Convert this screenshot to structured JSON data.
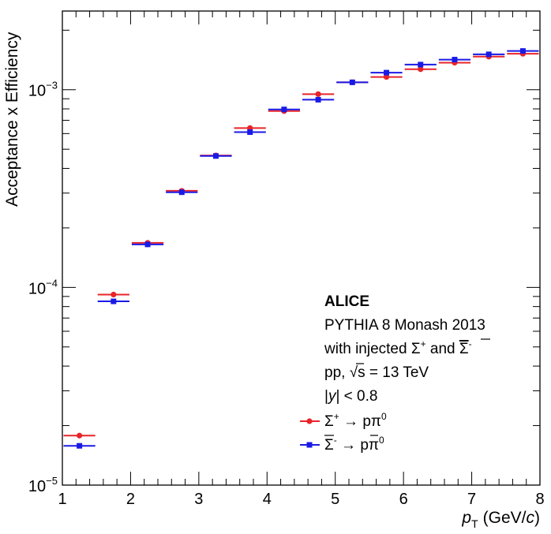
{
  "chart_data": {
    "type": "scatter",
    "ylabel": "Acceptance x Efficiency",
    "xlabel_main": "p",
    "xlabel_sub": "T",
    "xlabel_unit_open": "(GeV/",
    "xlabel_unit_c": "c",
    "xlabel_unit_close": ")",
    "x_range": [
      1,
      8
    ],
    "y_range": [
      1e-05,
      0.0025
    ],
    "y_scale": "log",
    "x_ticks": [
      1,
      2,
      3,
      4,
      5,
      6,
      7,
      8
    ],
    "x_tick_labels": [
      "1",
      "2",
      "3",
      "4",
      "5",
      "6",
      "7",
      "8"
    ],
    "y_tick_labels": [
      {
        "value": 0.001,
        "base": "10",
        "exp": "−3"
      },
      {
        "value": 0.0001,
        "base": "10",
        "exp": "−4"
      },
      {
        "value": 1e-05,
        "base": "10",
        "exp": "−5"
      }
    ],
    "bins": [
      [
        1,
        1.5
      ],
      [
        1.5,
        2
      ],
      [
        2,
        2.5
      ],
      [
        2.5,
        3
      ],
      [
        3,
        3.5
      ],
      [
        3.5,
        4
      ],
      [
        4,
        4.5
      ],
      [
        4.5,
        5
      ],
      [
        5,
        5.5
      ],
      [
        5.5,
        6
      ],
      [
        6,
        6.5
      ],
      [
        6.5,
        7
      ],
      [
        7,
        7.5
      ],
      [
        7.5,
        8
      ]
    ],
    "series": [
      {
        "name": "Sigma+ -> p pi0",
        "color": "#e8242a",
        "marker": "circle",
        "values": [
          1.78e-05,
          9.2e-05,
          0.000168,
          0.000308,
          0.000465,
          0.00064,
          0.00078,
          0.00095,
          0.00109,
          0.00116,
          0.00127,
          0.00137,
          0.00147,
          0.00152
        ]
      },
      {
        "name": "anti-Sigma- -> anti-p pi0",
        "color": "#1a1ae6",
        "marker": "square",
        "values": [
          1.58e-05,
          8.5e-05,
          0.000165,
          0.000303,
          0.000462,
          0.00061,
          0.000795,
          0.00089,
          0.00109,
          0.00122,
          0.00134,
          0.00142,
          0.00151,
          0.00157
        ]
      }
    ],
    "annotations": {
      "title": "ALICE",
      "line1": "PYTHIA 8 Monash 2013",
      "line2_prefix": "with injected Σ",
      "line2_sup1": "+",
      "line2_and": " and ",
      "line2_sigma": "Σ",
      "line2_sup2": "-",
      "line3_prefix": "pp, ",
      "line3_sqrt": "√",
      "line3_s": "s",
      "line3_suffix": " = 13 TeV",
      "line4_open": "|",
      "line4_y": "y",
      "line4_close": "| < 0.8"
    },
    "legend": {
      "position": "bottom-right",
      "entry1_sigma": "Σ",
      "entry1_sup": "+",
      "entry1_arrow": " → pπ",
      "entry1_sup2": "0",
      "entry2_sigma": "Σ",
      "entry2_sup": "-",
      "entry2_arrow": " → ",
      "entry2_p": "p",
      "entry2_pi": "π",
      "entry2_sup2": "0"
    }
  }
}
